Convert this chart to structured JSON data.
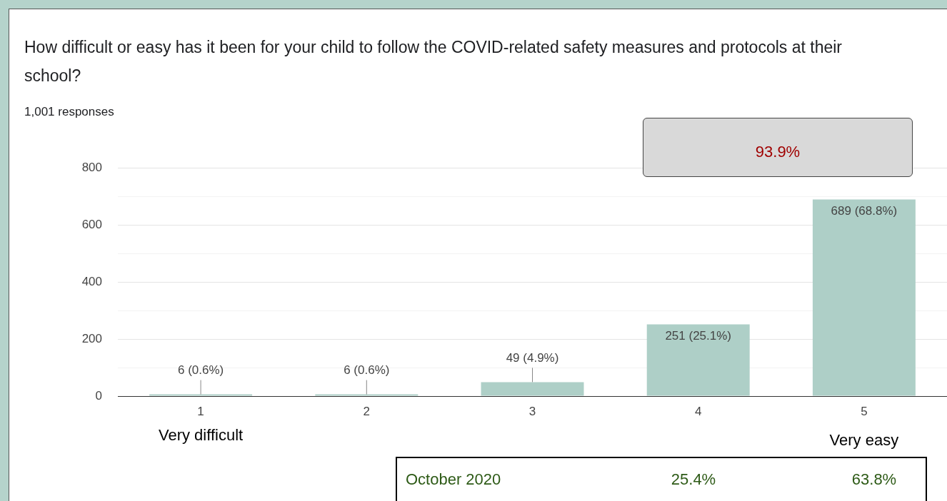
{
  "chart_data": {
    "type": "bar",
    "title": "How difficult or easy has it been for your child to follow the COVID-related safety measures and protocols at their school?",
    "subtitle": "1,001 responses",
    "categories": [
      "1",
      "2",
      "3",
      "4",
      "5"
    ],
    "values": [
      6,
      6,
      49,
      251,
      689
    ],
    "value_labels": [
      "6 (0.6%)",
      "6 (0.6%)",
      "49 (4.9%)",
      "251 (25.1%)",
      "689 (68.8%)"
    ],
    "color": "#aecfc7",
    "ylim": [
      0,
      800
    ],
    "yticks": [
      0,
      {
        "value": 100,
        "label": null
      },
      200,
      {
        "value": 300,
        "label": null
      },
      400,
      {
        "value": 500,
        "label": null
      },
      600,
      {
        "value": 700,
        "label": null
      },
      800
    ],
    "grid": "y",
    "annotations": [
      "Very difficult",
      "Very easy",
      "93.9%",
      "October 2020",
      "25.4%",
      "63.8%"
    ]
  }
}
